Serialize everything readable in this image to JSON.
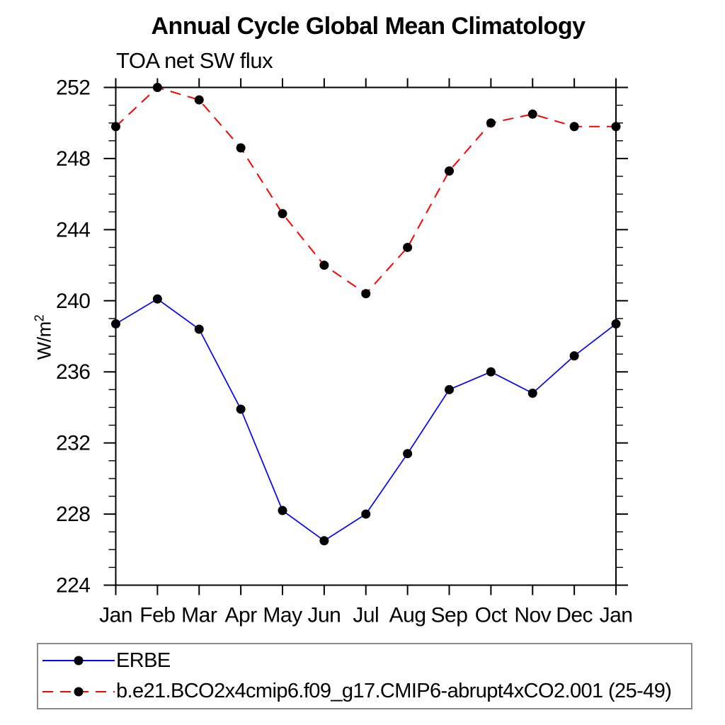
{
  "chart_data": {
    "type": "line",
    "title": "Annual Cycle Global Mean Climatology",
    "subtitle": "TOA net SW flux",
    "ylabel_base": "W/m",
    "ylabel_exponent": "2",
    "categories": [
      "Jan",
      "Feb",
      "Mar",
      "Apr",
      "May",
      "Jun",
      "Jul",
      "Aug",
      "Sep",
      "Oct",
      "Nov",
      "Dec",
      "Jan"
    ],
    "ylim": [
      224,
      252
    ],
    "ytick_major_interval": 4,
    "ytick_minor_interval": 1,
    "ytick_major_labels": [
      "224",
      "228",
      "232",
      "236",
      "240",
      "244",
      "248",
      "252"
    ],
    "grid": "off",
    "legend_position": "bottom",
    "axis_color": "#000000",
    "marker_color": "#000000",
    "series": [
      {
        "name": "ERBE",
        "color": "#0000ff",
        "line_style": "solid",
        "marker": "filled-circle",
        "values": [
          238.7,
          240.1,
          238.4,
          233.9,
          228.2,
          226.5,
          228.0,
          231.4,
          235.0,
          236.0,
          234.8,
          236.9,
          238.7
        ]
      },
      {
        "name": "b.e21.BCO2x4cmip6.f09_g17.CMIP6-abrupt4xCO2.001 (25-49)",
        "color": "#ff0000",
        "line_style": "dashed",
        "marker": "filled-circle",
        "values": [
          249.8,
          252.0,
          251.3,
          248.6,
          244.9,
          242.0,
          240.4,
          243.0,
          247.3,
          250.0,
          250.5,
          249.8,
          249.8
        ]
      }
    ]
  }
}
